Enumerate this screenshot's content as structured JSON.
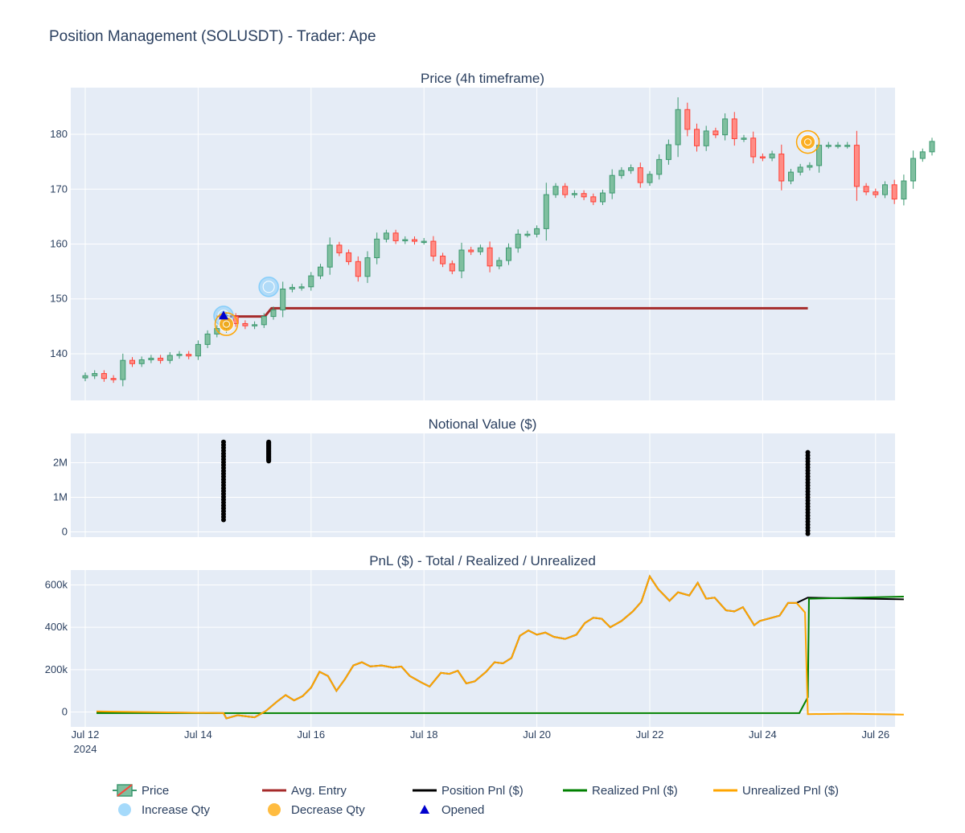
{
  "title": "Position Management (SOLUSDT) - Trader: Ape",
  "colors": {
    "plot_bg": "#e5ecf6",
    "grid": "#ffffff",
    "text": "#2a3f5f",
    "candle_up": "#3d9970",
    "candle_up_fill": "#7fbf9f",
    "candle_down": "#ff4136",
    "candle_down_fill": "#ff8c85",
    "avg_entry": "#a52a2a",
    "position_pnl": "#000000",
    "realized": "#008000",
    "unrealized": "#ffa500",
    "increase": "#87cefa",
    "decrease": "#ffa500",
    "opened": "#0000cd",
    "notional": "#000000"
  },
  "chart_data": [
    {
      "type": "candlestick",
      "title": "Price (4h timeframe)",
      "x_unit": "days since Jul 12 2024 00:00",
      "ylim": [
        131.5,
        188.5
      ],
      "yticks": [
        140,
        150,
        160,
        170,
        180
      ],
      "closes": [
        136.0,
        136.4,
        135.5,
        135.3,
        138.8,
        138.2,
        138.9,
        139.2,
        138.8,
        139.7,
        139.9,
        139.6,
        141.7,
        143.6,
        144.6,
        146.8,
        145.5,
        145.1,
        145.3,
        146.8,
        148.0,
        151.8,
        152.1,
        152.2,
        154.2,
        155.8,
        159.8,
        158.4,
        156.8,
        154.1,
        157.5,
        160.9,
        162.0,
        160.6,
        160.8,
        160.5,
        160.5,
        157.8,
        156.4,
        155.1,
        158.9,
        158.6,
        159.3,
        156.0,
        157.0,
        159.3,
        161.8,
        161.8,
        162.8,
        169.0,
        170.5,
        169.0,
        169.2,
        168.6,
        167.7,
        169.3,
        172.5,
        173.4,
        173.9,
        171.2,
        172.7,
        175.4,
        178.1,
        184.5,
        180.9,
        177.9,
        180.6,
        179.9,
        182.8,
        179.2,
        179.3,
        175.9,
        175.7,
        176.4,
        171.5,
        173.1,
        174.0,
        174.3,
        178.0,
        178.0,
        178.0,
        178.0,
        170.5,
        169.5,
        169.0,
        170.8,
        168.2,
        171.5,
        175.6,
        176.8,
        178.7
      ],
      "avg_entry": [
        [
          2.33,
          146.8
        ],
        [
          3.18,
          146.8
        ],
        [
          3.3,
          148.3
        ],
        [
          12.8,
          148.3
        ]
      ],
      "increase_markers": [
        [
          2.45,
          146.9
        ],
        [
          3.25,
          152.2
        ]
      ],
      "decrease_markers": [
        [
          2.5,
          145.4
        ],
        [
          12.8,
          178.6
        ]
      ],
      "opened_markers": [
        [
          2.45,
          147.0
        ]
      ]
    },
    {
      "type": "scatter",
      "title": "Notional Value ($)",
      "ylim": [
        -0.15,
        2.85
      ],
      "yticks": [
        "0",
        "1M",
        "2M"
      ],
      "ytick_values": [
        0,
        1,
        2
      ],
      "clusters": [
        {
          "x": 2.45,
          "ymin": 0.35,
          "ymax": 2.6
        },
        {
          "x": 3.25,
          "ymin": 2.05,
          "ymax": 2.6
        },
        {
          "x": 12.8,
          "ymin": -0.05,
          "ymax": 2.3
        }
      ]
    },
    {
      "type": "line",
      "title": "PnL ($) - Total / Realized / Unrealized",
      "ylim": [
        -70,
        670
      ],
      "yticks": [
        "0",
        "200k",
        "400k",
        "600k"
      ],
      "ytick_values": [
        0,
        200,
        400,
        600
      ],
      "xticks": [
        "Jul 12",
        "Jul 14",
        "Jul 16",
        "Jul 18",
        "Jul 20",
        "Jul 22",
        "Jul 24",
        "Jul 26"
      ],
      "xtick_values": [
        0,
        2,
        4,
        6,
        8,
        10,
        12,
        14
      ],
      "xtick_year": "2024",
      "position_pnl": [
        [
          0.2,
          0
        ],
        [
          2.45,
          -5
        ],
        [
          2.5,
          -30
        ],
        [
          2.7,
          -15
        ],
        [
          2.85,
          -20
        ],
        [
          3.0,
          -25
        ],
        [
          3.2,
          5
        ],
        [
          3.4,
          50
        ],
        [
          3.55,
          80
        ],
        [
          3.7,
          55
        ],
        [
          3.85,
          75
        ],
        [
          4.0,
          115
        ],
        [
          4.15,
          190
        ],
        [
          4.3,
          170
        ],
        [
          4.45,
          100
        ],
        [
          4.6,
          155
        ],
        [
          4.75,
          220
        ],
        [
          4.9,
          235
        ],
        [
          5.05,
          215
        ],
        [
          5.25,
          220
        ],
        [
          5.45,
          210
        ],
        [
          5.6,
          215
        ],
        [
          5.75,
          170
        ],
        [
          5.95,
          140
        ],
        [
          6.1,
          120
        ],
        [
          6.3,
          185
        ],
        [
          6.45,
          180
        ],
        [
          6.6,
          195
        ],
        [
          6.75,
          135
        ],
        [
          6.9,
          145
        ],
        [
          7.1,
          190
        ],
        [
          7.25,
          235
        ],
        [
          7.4,
          230
        ],
        [
          7.55,
          255
        ],
        [
          7.7,
          360
        ],
        [
          7.85,
          385
        ],
        [
          8.0,
          365
        ],
        [
          8.15,
          375
        ],
        [
          8.3,
          355
        ],
        [
          8.5,
          345
        ],
        [
          8.7,
          365
        ],
        [
          8.85,
          420
        ],
        [
          9.0,
          445
        ],
        [
          9.15,
          440
        ],
        [
          9.3,
          400
        ],
        [
          9.5,
          430
        ],
        [
          9.7,
          475
        ],
        [
          9.85,
          520
        ],
        [
          10.0,
          640
        ],
        [
          10.15,
          580
        ],
        [
          10.35,
          525
        ],
        [
          10.5,
          565
        ],
        [
          10.7,
          550
        ],
        [
          10.85,
          610
        ],
        [
          11.0,
          535
        ],
        [
          11.15,
          540
        ],
        [
          11.35,
          480
        ],
        [
          11.5,
          475
        ],
        [
          11.65,
          495
        ],
        [
          11.85,
          410
        ],
        [
          11.95,
          430
        ],
        [
          12.3,
          455
        ],
        [
          12.45,
          515
        ],
        [
          12.6,
          515
        ],
        [
          12.8,
          540
        ],
        [
          14.5,
          532
        ]
      ],
      "realized_pnl": [
        [
          0.2,
          -5
        ],
        [
          12.65,
          -5
        ],
        [
          12.8,
          70
        ],
        [
          12.82,
          535
        ],
        [
          14.5,
          545
        ]
      ],
      "unrealized_pnl": [
        [
          0.2,
          3
        ],
        [
          2.45,
          -5
        ],
        [
          2.5,
          -30
        ],
        [
          2.7,
          -15
        ],
        [
          2.85,
          -20
        ],
        [
          3.0,
          -25
        ],
        [
          3.2,
          5
        ],
        [
          3.4,
          50
        ],
        [
          3.55,
          80
        ],
        [
          3.7,
          55
        ],
        [
          3.85,
          75
        ],
        [
          4.0,
          115
        ],
        [
          4.15,
          190
        ],
        [
          4.3,
          170
        ],
        [
          4.45,
          100
        ],
        [
          4.6,
          155
        ],
        [
          4.75,
          220
        ],
        [
          4.9,
          235
        ],
        [
          5.05,
          215
        ],
        [
          5.25,
          220
        ],
        [
          5.45,
          210
        ],
        [
          5.6,
          215
        ],
        [
          5.75,
          170
        ],
        [
          5.95,
          140
        ],
        [
          6.1,
          120
        ],
        [
          6.3,
          185
        ],
        [
          6.45,
          180
        ],
        [
          6.6,
          195
        ],
        [
          6.75,
          135
        ],
        [
          6.9,
          145
        ],
        [
          7.1,
          190
        ],
        [
          7.25,
          235
        ],
        [
          7.4,
          230
        ],
        [
          7.55,
          255
        ],
        [
          7.7,
          360
        ],
        [
          7.85,
          385
        ],
        [
          8.0,
          365
        ],
        [
          8.15,
          375
        ],
        [
          8.3,
          355
        ],
        [
          8.5,
          345
        ],
        [
          8.7,
          365
        ],
        [
          8.85,
          420
        ],
        [
          9.0,
          445
        ],
        [
          9.15,
          440
        ],
        [
          9.3,
          400
        ],
        [
          9.5,
          430
        ],
        [
          9.7,
          475
        ],
        [
          9.85,
          520
        ],
        [
          10.0,
          640
        ],
        [
          10.15,
          580
        ],
        [
          10.35,
          525
        ],
        [
          10.5,
          565
        ],
        [
          10.7,
          550
        ],
        [
          10.85,
          610
        ],
        [
          11.0,
          535
        ],
        [
          11.15,
          540
        ],
        [
          11.35,
          480
        ],
        [
          11.5,
          475
        ],
        [
          11.65,
          495
        ],
        [
          11.85,
          410
        ],
        [
          11.95,
          430
        ],
        [
          12.3,
          455
        ],
        [
          12.45,
          515
        ],
        [
          12.6,
          515
        ],
        [
          12.75,
          470
        ],
        [
          12.8,
          -10
        ],
        [
          13.5,
          -8
        ],
        [
          14.5,
          -12
        ]
      ]
    }
  ],
  "legend": [
    {
      "label": "Price",
      "icon": "candle-icon"
    },
    {
      "label": "Avg. Entry",
      "icon": "line-icon",
      "color": "#a52a2a"
    },
    {
      "label": "Position Pnl ($)",
      "icon": "line-icon",
      "color": "#000000"
    },
    {
      "label": "Realized Pnl ($)",
      "icon": "line-icon",
      "color": "#008000"
    },
    {
      "label": "Unrealized Pnl ($)",
      "icon": "line-icon",
      "color": "#ffa500"
    },
    {
      "label": "Increase Qty",
      "icon": "circle-icon",
      "color": "#87cefa"
    },
    {
      "label": "Decrease Qty",
      "icon": "circle-icon",
      "color": "#ffa500"
    },
    {
      "label": "Opened",
      "icon": "triangle-icon",
      "color": "#0000cd"
    }
  ]
}
